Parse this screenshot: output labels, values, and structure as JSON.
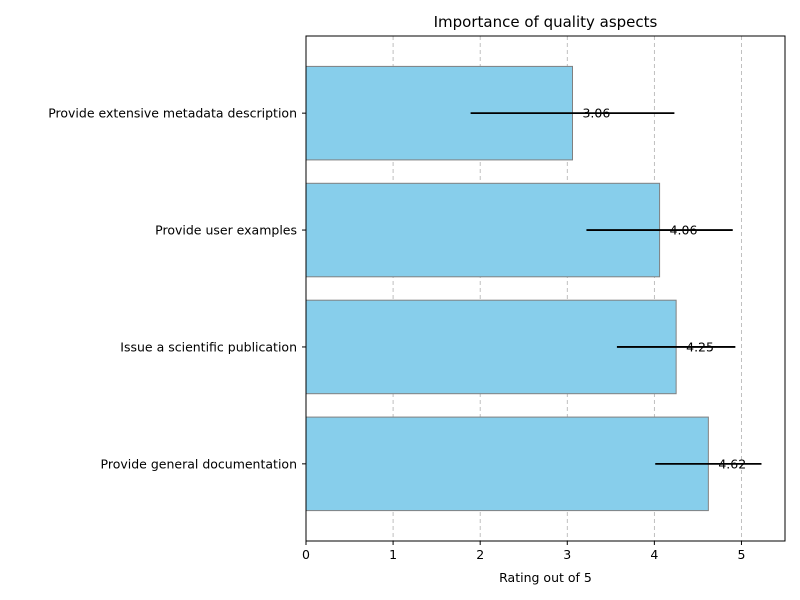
{
  "chart_data": {
    "type": "bar",
    "orientation": "horizontal",
    "title": "Importance of quality aspects",
    "xlabel": "Rating out of 5",
    "ylabel": "",
    "xlim": [
      0,
      5.5
    ],
    "xticks": [
      "0",
      "1",
      "2",
      "3",
      "4",
      "5"
    ],
    "grid": "x-dashed",
    "categories": [
      "Provide general documentation",
      "Issue a scientific publication",
      "Provide user examples",
      "Provide extensive metadata description"
    ],
    "values": [
      4.62,
      4.25,
      4.06,
      3.06
    ],
    "errors": [
      0.61,
      0.68,
      0.84,
      1.17
    ],
    "labels": [
      "4.62",
      "4.25",
      "4.06",
      "3.06"
    ],
    "bar_color": "#87CEEB",
    "bar_edge_color": "#808080",
    "error_color": "#000000"
  }
}
